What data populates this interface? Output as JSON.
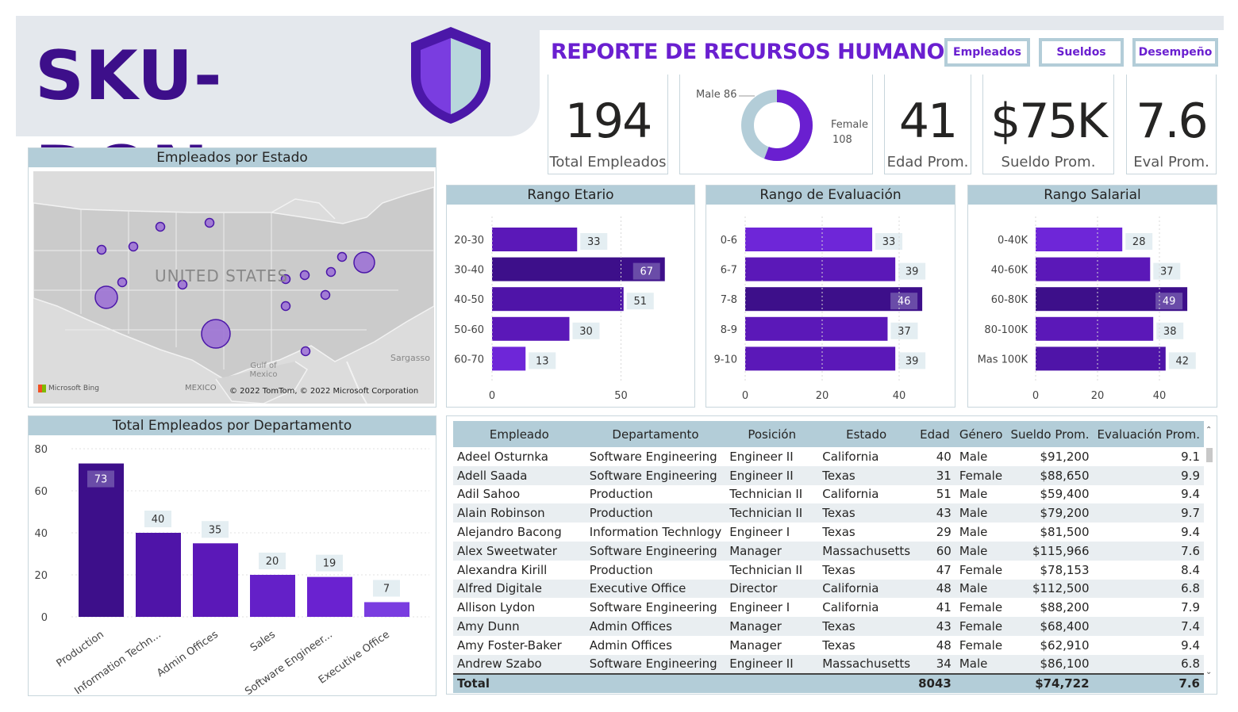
{
  "brand": {
    "name": "SKU-DON"
  },
  "header": {
    "title": "REPORTE DE RECURSOS HUMANOS"
  },
  "nav": [
    {
      "label": "Empleados"
    },
    {
      "label": "Sueldos"
    },
    {
      "label": "Desempeño"
    }
  ],
  "kpis": {
    "total": {
      "value": "194",
      "label": "Total Empleados"
    },
    "age": {
      "value": "41",
      "label": "Edad Prom."
    },
    "salary": {
      "value": "$75K",
      "label": "Sueldo Prom."
    },
    "eval": {
      "value": "7.6",
      "label": "Eval Prom."
    }
  },
  "gender": {
    "male_label": "Male 86",
    "female_label_1": "Female",
    "female_label_2": "108",
    "male": 86,
    "female": 108
  },
  "colors": {
    "accent": "#6a1fd0",
    "dark_purple": "#3d0f8a",
    "header_band": "#b3cdd8",
    "bar_mid": "#5b18b8",
    "bar_light": "#6e26d8"
  },
  "map": {
    "title": "Empleados por Estado",
    "country_label": "UNITED STATES",
    "gulf_label": "Gulf of\nMexico",
    "sargasso_label": "Sargasso",
    "mexico_label": "MEXICO",
    "bing_label": "Microsoft Bing",
    "copyright": "© 2022 TomTom, © 2022 Microsoft Corporation"
  },
  "age_chart": {
    "title": "Rango Etario",
    "categories": [
      "20-30",
      "30-40",
      "40-50",
      "50-60",
      "60-70"
    ],
    "values": [
      33,
      67,
      51,
      30,
      13
    ],
    "ticks": [
      "0",
      "50"
    ],
    "xmax": 67
  },
  "eval_chart": {
    "title": "Rango de Evaluación",
    "categories": [
      "0-6",
      "6-7",
      "7-8",
      "8-9",
      "9-10"
    ],
    "values": [
      33,
      39,
      46,
      37,
      39
    ],
    "ticks": [
      "0",
      "20",
      "40"
    ]
  },
  "salary_chart": {
    "title": "Rango Salarial",
    "categories": [
      "0-40K",
      "40-60K",
      "60-80K",
      "80-100K",
      "Mas 100K"
    ],
    "values": [
      28,
      37,
      49,
      38,
      42
    ],
    "ticks": [
      "0",
      "20",
      "40"
    ]
  },
  "chart_data": [
    {
      "type": "bar",
      "title": "Total Empleados por Departamento",
      "categories": [
        "Production",
        "Information Techn...",
        "Admin Offices",
        "Sales",
        "Software Engineer...",
        "Executive Office"
      ],
      "values": [
        73,
        40,
        35,
        20,
        19,
        7
      ],
      "ylim": [
        0,
        80
      ],
      "yticks": [
        "80",
        "60",
        "40",
        "20",
        "0"
      ]
    }
  ],
  "table": {
    "headers": [
      "Empleado",
      "Departamento",
      "Posición",
      "Estado",
      "Edad",
      "Género",
      "Sueldo Prom.",
      "Evaluación Prom."
    ],
    "rows": [
      [
        "Adeel Osturnka",
        "Software Engineering",
        "Engineer II",
        "California",
        "40",
        "Male",
        "$91,200",
        "9.1"
      ],
      [
        "Adell Saada",
        "Software Engineering",
        "Engineer II",
        "Texas",
        "31",
        "Female",
        "$88,650",
        "9.9"
      ],
      [
        "Adil Sahoo",
        "Production",
        "Technician II",
        "California",
        "51",
        "Male",
        "$59,400",
        "9.4"
      ],
      [
        "Alain Robinson",
        "Production",
        "Technician II",
        "Texas",
        "43",
        "Male",
        "$79,200",
        "9.7"
      ],
      [
        "Alejandro Bacong",
        "Information Technlogy",
        "Engineer I",
        "Texas",
        "29",
        "Male",
        "$81,500",
        "9.4"
      ],
      [
        "Alex Sweetwater",
        "Software Engineering",
        "Manager",
        "Massachusetts",
        "60",
        "Male",
        "$115,966",
        "7.6"
      ],
      [
        "Alexandra Kirill",
        "Production",
        "Technician II",
        "Texas",
        "47",
        "Female",
        "$78,153",
        "8.4"
      ],
      [
        "Alfred Digitale",
        "Executive Office",
        "Director",
        "California",
        "48",
        "Male",
        "$112,500",
        "6.8"
      ],
      [
        "Allison Lydon",
        "Software Engineering",
        "Engineer I",
        "California",
        "41",
        "Female",
        "$88,200",
        "7.9"
      ],
      [
        "Amy Dunn",
        "Admin Offices",
        "Manager",
        "Texas",
        "43",
        "Female",
        "$68,400",
        "7.4"
      ],
      [
        "Amy Foster-Baker",
        "Admin Offices",
        "Manager",
        "Texas",
        "48",
        "Female",
        "$62,910",
        "9.4"
      ],
      [
        "Andrew Szabo",
        "Software Engineering",
        "Engineer II",
        "Massachusetts",
        "34",
        "Male",
        "$86,100",
        "6.8"
      ]
    ],
    "total": [
      "Total",
      "",
      "",
      "",
      "8043",
      "",
      "$74,722",
      "7.6"
    ]
  }
}
